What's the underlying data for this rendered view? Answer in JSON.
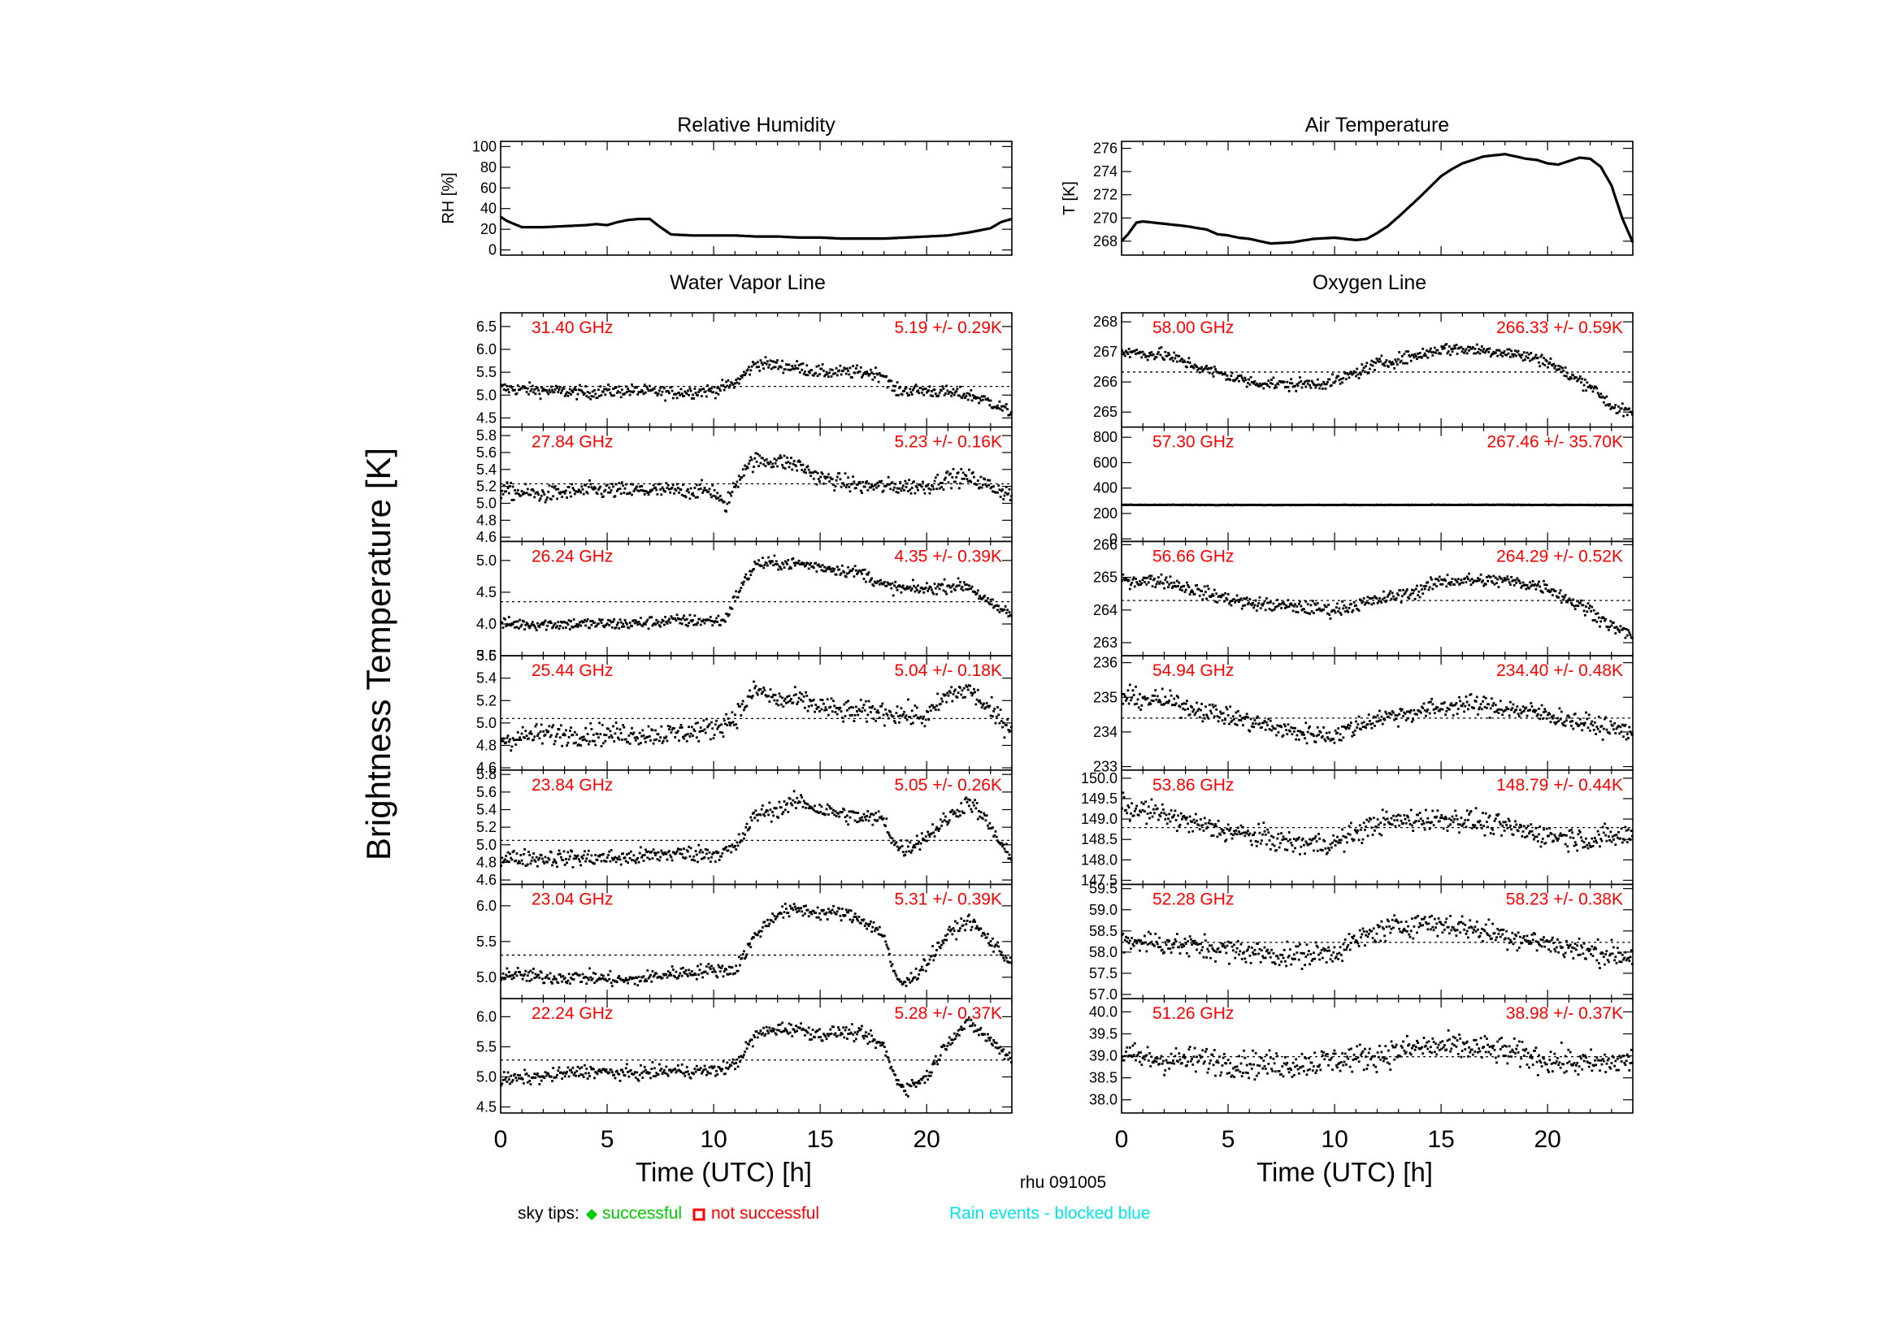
{
  "figure": {
    "ylabel": "Brightness Temperature [K]",
    "station": "rhu 091005",
    "xlabel": "Time (UTC) [h]",
    "legend": {
      "prefix": "sky tips:",
      "success_label": "successful",
      "fail_label": "not successful",
      "rain_label": "Rain events - blocked blue",
      "success_color": "#00cc00",
      "fail_color": "#ff0000",
      "rain_color": "#00e5ee"
    },
    "text_color": "#ff0000"
  },
  "column_titles": {
    "wv": "Water Vapor Line",
    "ox": "Oxygen Line"
  },
  "chart_data": [
    {
      "id": "rh",
      "type": "line",
      "title": "Relative Humidity",
      "ylabel": "RH [%]",
      "xlim": [
        0,
        24
      ],
      "ylim": [
        -5,
        105
      ],
      "yticks": [
        "0",
        "20",
        "40",
        "60",
        "80",
        "100"
      ],
      "ytick_values": [
        0,
        20,
        40,
        60,
        80,
        100
      ],
      "x": [
        0,
        0.3,
        1,
        2,
        3,
        4,
        4.5,
        5,
        5.5,
        6,
        6.5,
        7,
        7.5,
        8,
        9,
        10,
        11,
        12,
        13,
        14,
        15,
        16,
        17,
        18,
        19,
        20,
        21,
        22,
        23,
        23.5,
        24
      ],
      "y": [
        32,
        28,
        22,
        22,
        23,
        24,
        25,
        24,
        27,
        29,
        30,
        30,
        22,
        15,
        14,
        14,
        14,
        13,
        13,
        12,
        12,
        11,
        11,
        11,
        12,
        13,
        14,
        17,
        21,
        27,
        30
      ]
    },
    {
      "id": "temp",
      "type": "line",
      "title": "Air Temperature",
      "ylabel": "T [K]",
      "xlim": [
        0,
        24
      ],
      "ylim": [
        266.8,
        276.6
      ],
      "yticks": [
        "268",
        "270",
        "272",
        "274",
        "276"
      ],
      "ytick_values": [
        268,
        270,
        272,
        274,
        276
      ],
      "x": [
        0,
        0.3,
        0.7,
        1,
        2,
        3,
        4,
        4.5,
        5,
        5.5,
        6,
        6.5,
        7,
        8,
        9,
        10,
        11,
        11.5,
        12,
        12.5,
        13,
        14,
        15,
        15.5,
        16,
        17,
        18,
        19,
        19.5,
        20,
        20.5,
        21,
        21.5,
        22,
        22.5,
        23,
        23.5,
        24
      ],
      "y": [
        268,
        268.6,
        269.6,
        269.7,
        269.5,
        269.3,
        269,
        268.6,
        268.5,
        268.3,
        268.2,
        268,
        267.8,
        267.9,
        268.2,
        268.3,
        268.1,
        268.2,
        268.7,
        269.3,
        270.1,
        271.8,
        273.6,
        274.2,
        274.7,
        275.3,
        275.5,
        275.1,
        275,
        274.7,
        274.6,
        274.9,
        275.2,
        275.1,
        274.4,
        272.8,
        270,
        267.9
      ]
    },
    {
      "id": "ch3140",
      "type": "scatter",
      "freq_label": "31.40 GHz",
      "stats_label": "5.19 +/-  0.29K",
      "mean": 5.19,
      "std": 0.29,
      "ylim": [
        4.3,
        6.8
      ],
      "yticks": [
        "4.5",
        "5.0",
        "5.5",
        "6.0",
        "6.5"
      ],
      "ytick_values": [
        4.5,
        5.0,
        5.5,
        6.0,
        6.5
      ],
      "xlim": [
        0,
        24
      ],
      "x": [
        0,
        2,
        4,
        6,
        8,
        10,
        11,
        12,
        13,
        14,
        15,
        16,
        17,
        18,
        18.5,
        20,
        22,
        23,
        24
      ],
      "y": [
        5.15,
        5.1,
        5.05,
        5.1,
        5.05,
        5.1,
        5.25,
        5.7,
        5.65,
        5.6,
        5.5,
        5.5,
        5.5,
        5.45,
        5.1,
        5.1,
        5.0,
        4.85,
        4.6
      ],
      "noise": 0.1
    },
    {
      "id": "ch2784",
      "type": "scatter",
      "freq_label": "27.84 GHz",
      "stats_label": "5.23 +/-  0.16K",
      "mean": 5.23,
      "std": 0.16,
      "ylim": [
        4.55,
        5.9
      ],
      "yticks": [
        "4.6",
        "4.8",
        "5.0",
        "5.2",
        "5.4",
        "5.6",
        "5.8"
      ],
      "ytick_values": [
        4.6,
        4.8,
        5.0,
        5.2,
        5.4,
        5.6,
        5.8
      ],
      "xlim": [
        0,
        24
      ],
      "x": [
        0,
        2,
        4,
        6,
        8,
        10,
        10.5,
        11,
        11.5,
        12,
        13,
        14,
        15,
        16,
        17,
        18,
        20,
        21,
        22,
        23,
        24
      ],
      "y": [
        5.15,
        5.1,
        5.15,
        5.15,
        5.15,
        5.15,
        4.95,
        5.2,
        5.45,
        5.5,
        5.5,
        5.45,
        5.3,
        5.25,
        5.2,
        5.2,
        5.2,
        5.3,
        5.3,
        5.2,
        5.1
      ],
      "noise": 0.07
    },
    {
      "id": "ch2624",
      "type": "scatter",
      "freq_label": "26.24 GHz",
      "stats_label": "4.35 +/-  0.39K",
      "mean": 4.35,
      "std": 0.39,
      "ylim": [
        3.5,
        5.3
      ],
      "yticks": [
        "3.5",
        "4.0",
        "4.5",
        "5.0"
      ],
      "ytick_values": [
        3.5,
        4.0,
        4.5,
        5.0
      ],
      "xlim": [
        0,
        24
      ],
      "x": [
        0,
        2,
        4,
        6,
        8,
        10,
        10.5,
        11,
        11.5,
        12,
        13,
        14,
        15,
        16,
        17,
        18,
        19,
        20,
        21,
        22,
        23,
        24
      ],
      "y": [
        4.0,
        4.0,
        4.0,
        4.0,
        4.05,
        4.05,
        4.05,
        4.4,
        4.7,
        4.95,
        4.95,
        4.95,
        4.9,
        4.85,
        4.8,
        4.6,
        4.55,
        4.55,
        4.6,
        4.6,
        4.3,
        4.15
      ],
      "noise": 0.07
    },
    {
      "id": "ch2544",
      "type": "scatter",
      "freq_label": "25.44 GHz",
      "stats_label": "5.04 +/-  0.18K",
      "mean": 5.04,
      "std": 0.18,
      "ylim": [
        4.58,
        5.6
      ],
      "yticks": [
        "4.6",
        "4.8",
        "5.0",
        "5.2",
        "5.4",
        "5.6"
      ],
      "ytick_values": [
        4.6,
        4.8,
        5.0,
        5.2,
        5.4,
        5.6
      ],
      "xlim": [
        0,
        24
      ],
      "x": [
        0,
        2,
        4,
        6,
        8,
        10,
        11,
        12,
        13,
        14,
        16,
        18,
        20,
        21,
        22,
        23,
        24
      ],
      "y": [
        4.85,
        4.9,
        4.9,
        4.9,
        4.9,
        4.95,
        5.05,
        5.3,
        5.2,
        5.2,
        5.1,
        5.1,
        5.05,
        5.25,
        5.3,
        5.1,
        4.95
      ],
      "noise": 0.07
    },
    {
      "id": "ch2384",
      "type": "scatter",
      "freq_label": "23.84 GHz",
      "stats_label": "5.05 +/-  0.26K",
      "mean": 5.05,
      "std": 0.26,
      "ylim": [
        4.55,
        5.85
      ],
      "yticks": [
        "4.6",
        "4.8",
        "5.0",
        "5.2",
        "5.4",
        "5.6",
        "5.8"
      ],
      "ytick_values": [
        4.6,
        4.8,
        5.0,
        5.2,
        5.4,
        5.6,
        5.8
      ],
      "xlim": [
        0,
        24
      ],
      "x": [
        0,
        2,
        4,
        6,
        8,
        10,
        11,
        12,
        13,
        14,
        15,
        16,
        17,
        18,
        18.5,
        19,
        20,
        21,
        22,
        23,
        24
      ],
      "y": [
        4.85,
        4.85,
        4.85,
        4.85,
        4.9,
        4.9,
        4.95,
        5.35,
        5.4,
        5.5,
        5.4,
        5.35,
        5.3,
        5.3,
        5.0,
        4.95,
        5.1,
        5.3,
        5.5,
        5.2,
        4.8
      ],
      "noise": 0.07
    },
    {
      "id": "ch2304",
      "type": "scatter",
      "freq_label": "23.04 GHz",
      "stats_label": "5.31 +/-  0.39K",
      "mean": 5.31,
      "std": 0.39,
      "ylim": [
        4.7,
        6.3
      ],
      "yticks": [
        "5.0",
        "5.5",
        "6.0"
      ],
      "ytick_values": [
        5.0,
        5.5,
        6.0
      ],
      "xlim": [
        0,
        24
      ],
      "x": [
        0,
        2,
        4,
        6,
        8,
        10,
        11,
        12,
        13,
        14,
        15,
        16,
        17,
        18,
        18.5,
        19,
        20,
        21,
        22,
        23,
        24
      ],
      "y": [
        5.05,
        5.0,
        5.0,
        4.95,
        5.05,
        5.1,
        5.1,
        5.6,
        5.9,
        5.95,
        5.9,
        5.9,
        5.8,
        5.6,
        5.0,
        4.9,
        5.2,
        5.6,
        5.8,
        5.5,
        5.2
      ],
      "noise": 0.07
    },
    {
      "id": "ch2224",
      "type": "scatter",
      "freq_label": "22.24 GHz",
      "stats_label": "5.28 +/-  0.37K",
      "mean": 5.28,
      "std": 0.37,
      "ylim": [
        4.4,
        6.3
      ],
      "yticks": [
        "4.5",
        "5.0",
        "5.5",
        "6.0"
      ],
      "ytick_values": [
        4.5,
        5.0,
        5.5,
        6.0
      ],
      "xlim": [
        0,
        24
      ],
      "x": [
        0,
        2,
        4,
        6,
        8,
        10,
        11,
        12,
        13,
        14,
        15,
        16,
        17,
        18,
        18.5,
        19,
        20,
        21,
        22,
        23,
        24
      ],
      "y": [
        4.95,
        5.0,
        5.1,
        5.05,
        5.1,
        5.1,
        5.2,
        5.7,
        5.8,
        5.8,
        5.7,
        5.75,
        5.7,
        5.5,
        5.0,
        4.8,
        5.0,
        5.6,
        5.9,
        5.6,
        5.3
      ],
      "noise": 0.08
    },
    {
      "id": "ch5800",
      "type": "scatter",
      "freq_label": "58.00 GHz",
      "stats_label": "266.33 +/-  0.59K",
      "mean": 266.33,
      "std": 0.59,
      "ylim": [
        264.5,
        268.3
      ],
      "yticks": [
        "265",
        "266",
        "267",
        "268"
      ],
      "ytick_values": [
        265,
        266,
        267,
        268
      ],
      "xlim": [
        0,
        24
      ],
      "x": [
        0,
        2,
        4,
        6,
        8,
        10,
        12,
        14,
        15,
        16,
        18,
        20,
        21,
        22,
        23,
        24
      ],
      "y": [
        267.0,
        266.9,
        266.4,
        266.0,
        265.9,
        266.0,
        266.6,
        266.9,
        267.1,
        267.1,
        267.0,
        266.7,
        266.2,
        265.9,
        265.2,
        264.9
      ],
      "noise": 0.15
    },
    {
      "id": "ch5730",
      "type": "scatter",
      "freq_label": "57.30 GHz",
      "stats_label": "267.46 +/- 35.70K",
      "mean": 267.46,
      "std": 35.7,
      "ylim": [
        -20,
        880
      ],
      "yticks": [
        "0",
        "200",
        "400",
        "600",
        "800"
      ],
      "ytick_values": [
        0,
        200,
        400,
        600,
        800
      ],
      "xlim": [
        0,
        24
      ],
      "x": [
        0,
        6,
        12,
        18,
        24
      ],
      "y": [
        268,
        267,
        267,
        268,
        266
      ],
      "noise": 1.5
    },
    {
      "id": "ch5666",
      "type": "scatter",
      "freq_label": "56.66 GHz",
      "stats_label": "264.29 +/-  0.52K",
      "mean": 264.29,
      "std": 0.52,
      "ylim": [
        262.6,
        266.1
      ],
      "yticks": [
        "263",
        "264",
        "265",
        "266"
      ],
      "ytick_values": [
        263,
        264,
        265,
        266
      ],
      "xlim": [
        0,
        24
      ],
      "x": [
        0,
        2,
        4,
        6,
        8,
        10,
        12,
        14,
        15,
        16,
        18,
        20,
        21,
        22,
        23,
        24
      ],
      "y": [
        264.9,
        264.9,
        264.5,
        264.2,
        264.1,
        264.0,
        264.3,
        264.6,
        264.9,
        264.9,
        264.9,
        264.7,
        264.3,
        264.0,
        263.5,
        263.2
      ],
      "noise": 0.15
    },
    {
      "id": "ch5494",
      "type": "scatter",
      "freq_label": "54.94 GHz",
      "stats_label": "234.40 +/-  0.48K",
      "mean": 234.4,
      "std": 0.48,
      "ylim": [
        232.9,
        236.2
      ],
      "yticks": [
        "233",
        "234",
        "235",
        "236"
      ],
      "ytick_values": [
        233,
        234,
        235,
        236
      ],
      "xlim": [
        0,
        24
      ],
      "x": [
        0,
        2,
        4,
        6,
        8,
        10,
        12,
        14,
        16,
        18,
        20,
        22,
        24
      ],
      "y": [
        235.0,
        234.9,
        234.6,
        234.3,
        234.0,
        233.9,
        234.4,
        234.6,
        234.8,
        234.7,
        234.5,
        234.2,
        234.0
      ],
      "noise": 0.2
    },
    {
      "id": "ch5386",
      "type": "scatter",
      "freq_label": "53.86 GHz",
      "stats_label": "148.79 +/-  0.44K",
      "mean": 148.79,
      "std": 0.44,
      "ylim": [
        147.4,
        150.2
      ],
      "yticks": [
        "147.5",
        "148.0",
        "148.5",
        "149.0",
        "149.5",
        "150.0"
      ],
      "ytick_values": [
        147.5,
        148.0,
        148.5,
        149.0,
        149.5,
        150.0
      ],
      "xlim": [
        0,
        24
      ],
      "x": [
        0,
        2,
        4,
        6,
        8,
        10,
        12,
        14,
        16,
        18,
        20,
        22,
        24
      ],
      "y": [
        149.3,
        149.1,
        148.8,
        148.6,
        148.4,
        148.4,
        148.9,
        149.0,
        149.0,
        148.8,
        148.6,
        148.5,
        148.6
      ],
      "noise": 0.2
    },
    {
      "id": "ch5228",
      "type": "scatter",
      "freq_label": "52.28 GHz",
      "stats_label": "58.23 +/-  0.38K",
      "mean": 58.23,
      "std": 0.38,
      "ylim": [
        56.9,
        59.6
      ],
      "yticks": [
        "57.0",
        "57.5",
        "58.0",
        "58.5",
        "59.0",
        "59.5"
      ],
      "ytick_values": [
        57.0,
        57.5,
        58.0,
        58.5,
        59.0,
        59.5
      ],
      "xlim": [
        0,
        24
      ],
      "x": [
        0,
        2,
        4,
        6,
        8,
        10,
        12,
        14,
        16,
        18,
        20,
        22,
        24
      ],
      "y": [
        58.3,
        58.2,
        58.1,
        58.0,
        57.9,
        58.0,
        58.5,
        58.7,
        58.6,
        58.4,
        58.2,
        58.0,
        57.9
      ],
      "noise": 0.2
    },
    {
      "id": "ch5126",
      "type": "scatter",
      "freq_label": "51.26 GHz",
      "stats_label": "38.98 +/-  0.37K",
      "mean": 38.98,
      "std": 0.37,
      "ylim": [
        37.7,
        40.3
      ],
      "yticks": [
        "38.0",
        "38.5",
        "39.0",
        "39.5",
        "40.0"
      ],
      "ytick_values": [
        38.0,
        38.5,
        39.0,
        39.5,
        40.0
      ],
      "xlim": [
        0,
        24
      ],
      "x": [
        0,
        2,
        4,
        6,
        8,
        10,
        12,
        14,
        16,
        18,
        20,
        22,
        24
      ],
      "y": [
        39.0,
        38.9,
        38.9,
        38.8,
        38.8,
        38.9,
        39.0,
        39.2,
        39.2,
        39.1,
        38.9,
        38.8,
        38.9
      ],
      "noise": 0.22
    }
  ],
  "x_axis": {
    "ticks": [
      "0",
      "5",
      "10",
      "15",
      "20"
    ],
    "tick_values": [
      0,
      5,
      10,
      15,
      20
    ]
  }
}
